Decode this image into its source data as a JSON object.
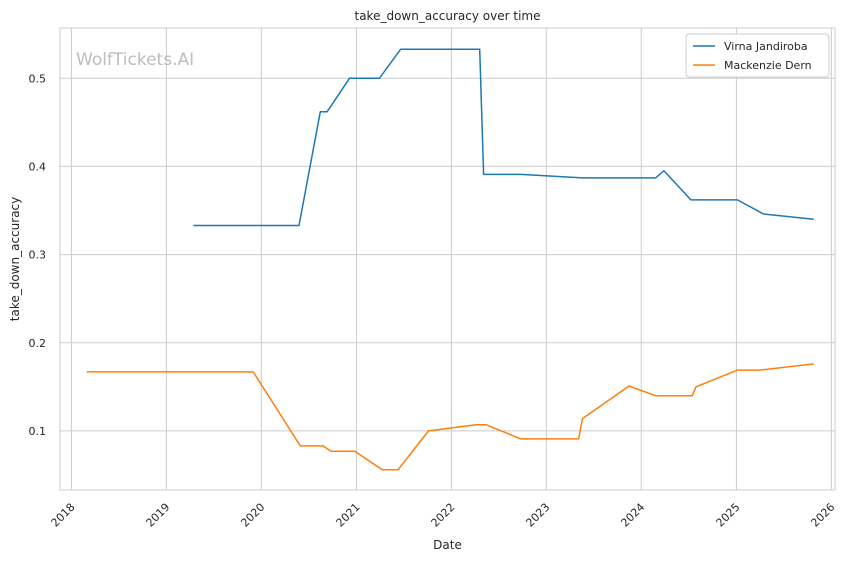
{
  "chart_data": {
    "type": "line",
    "title": "take_down_accuracy over time",
    "xlabel": "Date",
    "ylabel": "take_down_accuracy",
    "watermark": "WolfTickets.AI",
    "xlim": [
      "2017-11-18",
      "2026-01-15"
    ],
    "ylim": [
      0.033,
      0.557
    ],
    "x_ticks": [
      "2018",
      "2019",
      "2020",
      "2021",
      "2022",
      "2023",
      "2024",
      "2025",
      "2026"
    ],
    "y_ticks": [
      "0.1",
      "0.2",
      "0.3",
      "0.4",
      "0.5"
    ],
    "grid": true,
    "legend_position": "top-right",
    "series": [
      {
        "name": "Virna Jandiroba",
        "color": "#1f77b4",
        "points": [
          [
            "2019-04-15",
            0.333
          ],
          [
            "2020-05-25",
            0.333
          ],
          [
            "2020-08-15",
            0.462
          ],
          [
            "2020-09-10",
            0.462
          ],
          [
            "2020-12-05",
            0.5
          ],
          [
            "2021-03-30",
            0.5
          ],
          [
            "2021-06-20",
            0.533
          ],
          [
            "2022-04-20",
            0.533
          ],
          [
            "2022-05-05",
            0.391
          ],
          [
            "2022-09-25",
            0.391
          ],
          [
            "2023-05-20",
            0.387
          ],
          [
            "2024-02-25",
            0.387
          ],
          [
            "2024-03-28",
            0.395
          ],
          [
            "2024-07-10",
            0.362
          ],
          [
            "2025-01-05",
            0.362
          ],
          [
            "2025-04-15",
            0.346
          ],
          [
            "2025-10-25",
            0.34
          ]
        ]
      },
      {
        "name": "Mackenzie Dern",
        "color": "#ff7f0e",
        "points": [
          [
            "2018-03-01",
            0.167
          ],
          [
            "2019-12-01",
            0.167
          ],
          [
            "2020-05-30",
            0.083
          ],
          [
            "2020-08-25",
            0.083
          ],
          [
            "2020-09-25",
            0.077
          ],
          [
            "2020-12-25",
            0.077
          ],
          [
            "2021-04-10",
            0.056
          ],
          [
            "2021-06-10",
            0.056
          ],
          [
            "2021-10-05",
            0.1
          ],
          [
            "2022-04-05",
            0.107
          ],
          [
            "2022-05-15",
            0.107
          ],
          [
            "2022-09-25",
            0.091
          ],
          [
            "2023-05-05",
            0.091
          ],
          [
            "2023-05-20",
            0.114
          ],
          [
            "2023-11-15",
            0.151
          ],
          [
            "2024-02-25",
            0.14
          ],
          [
            "2024-07-15",
            0.14
          ],
          [
            "2024-07-30",
            0.15
          ],
          [
            "2025-01-05",
            0.169
          ],
          [
            "2025-04-01",
            0.169
          ],
          [
            "2025-10-25",
            0.176
          ]
        ]
      }
    ]
  },
  "colors": {
    "background": "#ffffff",
    "grid": "#cccccc",
    "axes_edge": "#cccccc",
    "text": "#262626",
    "watermark": "#bdbdbd"
  }
}
